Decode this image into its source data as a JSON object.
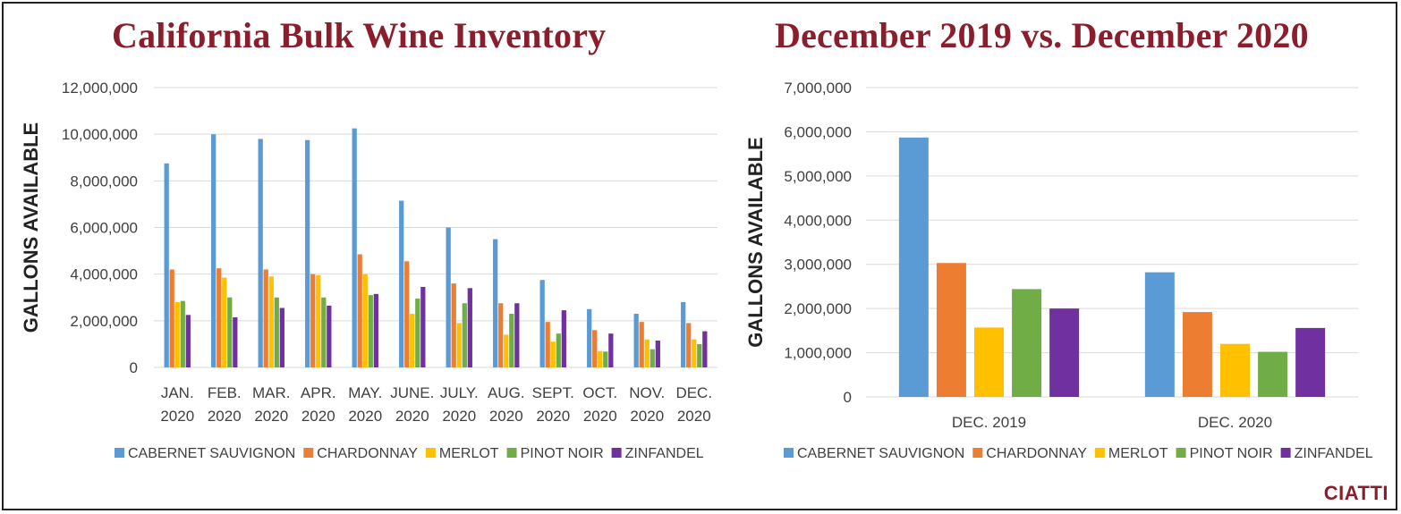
{
  "colors": {
    "CABERNET SAUVIGNON": "#5b9bd5",
    "CHARDONNAY": "#ed7d31",
    "MERLOT": "#ffc000",
    "PINOT NOIR": "#70ad47",
    "ZINFANDEL": "#7030a0",
    "title": "#8b1e2c",
    "grid": "#d9d9d9"
  },
  "brand": "CIATTI",
  "chart_data": [
    {
      "type": "bar",
      "title": "California Bulk Wine Inventory",
      "ylabel": "GALLONS AVAILABLE",
      "xlabel": "",
      "ylim": [
        0,
        12000000
      ],
      "yticks": [
        0,
        2000000,
        4000000,
        6000000,
        8000000,
        10000000,
        12000000
      ],
      "ytick_labels": [
        "0",
        "2,000,000",
        "4,000,000",
        "6,000,000",
        "8,000,000",
        "10,000,000",
        "12,000,000"
      ],
      "categories": [
        [
          "JAN.",
          "2020"
        ],
        [
          "FEB.",
          "2020"
        ],
        [
          "MAR.",
          "2020"
        ],
        [
          "APR.",
          "2020"
        ],
        [
          "MAY.",
          "2020"
        ],
        [
          "JUNE.",
          "2020"
        ],
        [
          "JULY.",
          "2020"
        ],
        [
          "AUG.",
          "2020"
        ],
        [
          "SEPT.",
          "2020"
        ],
        [
          "OCT.",
          "2020"
        ],
        [
          "NOV.",
          "2020"
        ],
        [
          "DEC.",
          "2020"
        ]
      ],
      "series": [
        {
          "name": "CABERNET SAUVIGNON",
          "values": [
            8750000,
            10000000,
            9800000,
            9750000,
            10250000,
            7150000,
            6000000,
            5500000,
            3750000,
            2500000,
            2300000,
            2800000
          ]
        },
        {
          "name": "CHARDONNAY",
          "values": [
            4200000,
            4250000,
            4200000,
            4000000,
            4850000,
            4550000,
            3600000,
            2750000,
            1950000,
            1600000,
            1950000,
            1900000
          ]
        },
        {
          "name": "MERLOT",
          "values": [
            2800000,
            3850000,
            3900000,
            3950000,
            4000000,
            2300000,
            1900000,
            1400000,
            1100000,
            700000,
            1200000,
            1200000
          ]
        },
        {
          "name": "PINOT NOIR",
          "values": [
            2850000,
            3000000,
            3000000,
            3000000,
            3100000,
            2950000,
            2750000,
            2300000,
            1450000,
            680000,
            780000,
            1000000
          ]
        },
        {
          "name": "ZINFANDEL",
          "values": [
            2250000,
            2150000,
            2550000,
            2650000,
            3150000,
            3450000,
            3400000,
            2750000,
            2450000,
            1450000,
            1150000,
            1550000
          ]
        }
      ],
      "legend": "bottom",
      "grid": true
    },
    {
      "type": "bar",
      "title": "December 2019 vs. December 2020",
      "ylabel": "GALLONS AVAILABLE",
      "xlabel": "",
      "ylim": [
        0,
        7000000
      ],
      "yticks": [
        0,
        1000000,
        2000000,
        3000000,
        4000000,
        5000000,
        6000000,
        7000000
      ],
      "ytick_labels": [
        "0",
        "1,000,000",
        "2,000,000",
        "3,000,000",
        "4,000,000",
        "5,000,000",
        "6,000,000",
        "7,000,000"
      ],
      "categories": [
        [
          "DEC. 2019"
        ],
        [
          "DEC. 2020"
        ]
      ],
      "series": [
        {
          "name": "CABERNET SAUVIGNON",
          "values": [
            5870000,
            2820000
          ]
        },
        {
          "name": "CHARDONNAY",
          "values": [
            3030000,
            1920000
          ]
        },
        {
          "name": "MERLOT",
          "values": [
            1570000,
            1200000
          ]
        },
        {
          "name": "PINOT NOIR",
          "values": [
            2440000,
            1020000
          ]
        },
        {
          "name": "ZINFANDEL",
          "values": [
            2000000,
            1560000
          ]
        }
      ],
      "legend": "bottom",
      "grid": true
    }
  ]
}
